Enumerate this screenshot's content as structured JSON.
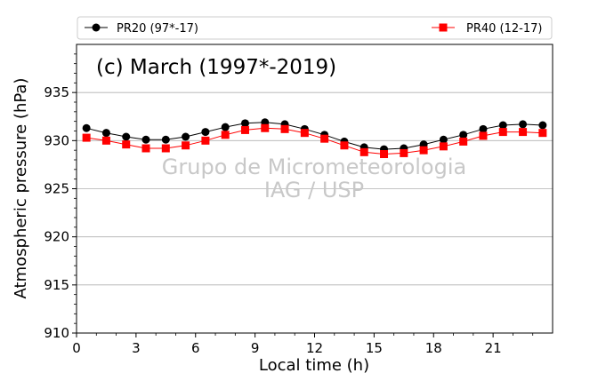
{
  "chart_data": {
    "type": "line",
    "title": "(c) March (1997*-2019)",
    "xlabel": "Local time (h)",
    "ylabel": "Atmospheric pressure (hPa)",
    "xlim": [
      0,
      24
    ],
    "ylim": [
      910,
      940
    ],
    "xticks": [
      0,
      3,
      6,
      9,
      12,
      15,
      18,
      21
    ],
    "yticks": [
      910,
      915,
      920,
      925,
      930,
      935
    ],
    "grid": "horizontal",
    "legend_position": "top",
    "x": [
      0.5,
      1.5,
      2.5,
      3.5,
      4.5,
      5.5,
      6.5,
      7.5,
      8.5,
      9.5,
      10.5,
      11.5,
      12.5,
      13.5,
      14.5,
      15.5,
      16.5,
      17.5,
      18.5,
      19.5,
      20.5,
      21.5,
      22.5,
      23.5
    ],
    "series": [
      {
        "name": "PR20 (97*-17)",
        "color": "#000000",
        "marker": "circle",
        "values": [
          931.3,
          930.8,
          930.4,
          930.1,
          930.1,
          930.4,
          930.9,
          931.4,
          931.8,
          931.9,
          931.7,
          931.2,
          930.6,
          929.9,
          929.3,
          929.1,
          929.2,
          929.6,
          930.1,
          930.6,
          931.2,
          931.6,
          931.7,
          931.6
        ]
      },
      {
        "name": "PR40 (12-17)",
        "color": "#ff0000",
        "marker": "square",
        "values": [
          930.3,
          930.0,
          929.6,
          929.2,
          929.2,
          929.5,
          930.0,
          930.6,
          931.1,
          931.3,
          931.2,
          930.8,
          930.2,
          929.5,
          928.8,
          928.6,
          928.7,
          929.0,
          929.4,
          929.9,
          930.5,
          930.9,
          930.9,
          930.8
        ]
      }
    ],
    "watermark": [
      "Grupo de Micrometeorologia",
      "IAG / USP"
    ]
  }
}
